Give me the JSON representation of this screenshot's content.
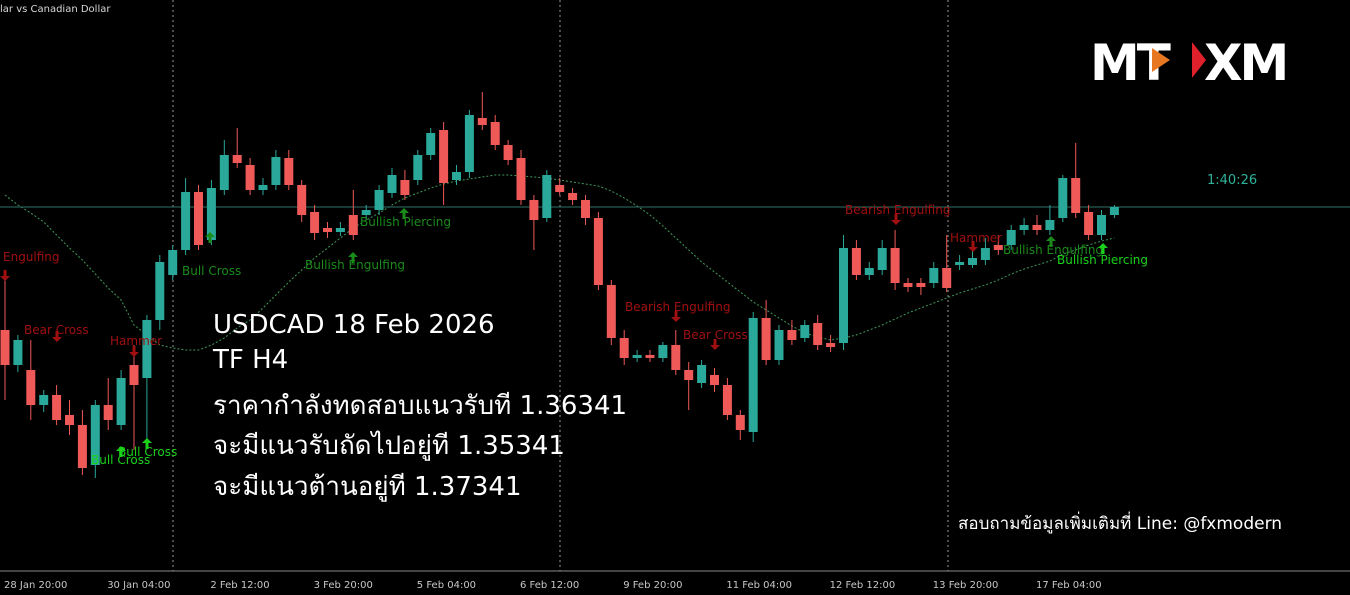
{
  "chart_data": {
    "type": "candlestick",
    "title": "lar vs Canadian Dollar",
    "timer": "1:40:26",
    "logo": {
      "left": "MT",
      "right": "XM"
    },
    "overlay_text": [
      "USDCAD 18 Feb 2026",
      "TF H4",
      "ราคากำลังทดสอบแนวรับที 1.36341",
      "จะมีแนวรับถัดไปอยู่ที 1.35341",
      "จะมีแนวต้านอยู่ที 1.37341"
    ],
    "footer": "สอบถามข้อมูลเพิ่มเติมที่ Line: @fxmodern",
    "up_color": "#2aa89a",
    "down_color": "#ef5a58",
    "ylim": [
      1.3693,
      1.375
    ],
    "x": [
      "28 Jan 20:00",
      null,
      null,
      null,
      null,
      null,
      null,
      null,
      "30 Jan 04:00",
      null,
      null,
      null,
      null,
      null,
      null,
      null,
      "2 Feb 12:00",
      null,
      null,
      null,
      null,
      null,
      null,
      null,
      "3 Feb 20:00",
      null,
      null,
      null,
      null,
      null,
      null,
      null,
      "5 Feb 04:00",
      null,
      null,
      null,
      null,
      null,
      null,
      null,
      "6 Feb 12:00",
      null,
      null,
      null,
      null,
      null,
      null,
      null,
      "9 Feb 20:00",
      null,
      null,
      null,
      null,
      null,
      null,
      null,
      "11 Feb 04:00",
      null,
      null,
      null,
      null,
      null,
      null,
      null,
      "12 Feb 12:00",
      null,
      null,
      null,
      null,
      null,
      null,
      null,
      "13 Feb 20:00",
      null,
      null,
      null,
      null,
      null,
      null,
      null,
      "17 Feb 04:00",
      null,
      null,
      null,
      null,
      null,
      null
    ],
    "open": [
      1.3717,
      1.37135,
      1.3713,
      1.37095,
      1.37105,
      1.37085,
      1.37075,
      1.37035,
      1.37095,
      1.37075,
      1.37135,
      1.37122,
      1.3718,
      1.37225,
      1.3725,
      1.37308,
      1.3726,
      1.3731,
      1.37345,
      1.37335,
      1.3731,
      1.37315,
      1.37342,
      1.37315,
      1.37288,
      1.37272,
      1.37268,
      1.37285,
      1.37285,
      1.3729,
      1.37307,
      1.3732,
      1.3732,
      1.37345,
      1.3737,
      1.3732,
      1.37328,
      1.37382,
      1.37378,
      1.37355,
      1.37342,
      1.373,
      1.37282,
      1.37315,
      1.37307,
      1.373,
      1.37282,
      1.37215,
      1.37162,
      1.37142,
      1.37145,
      1.37142,
      1.37155,
      1.3713,
      1.37117,
      1.37125,
      1.37115,
      1.37085,
      1.37068,
      1.37182,
      1.3714,
      1.3717,
      1.37162,
      1.37177,
      1.37157,
      1.37157,
      1.37252,
      1.37225,
      1.3723,
      1.37252,
      1.37217,
      1.37217,
      1.37217,
      1.37232,
      1.37235,
      1.37235,
      1.3724,
      1.37255,
      1.37255,
      1.3727,
      1.37275,
      1.3727,
      1.37282,
      1.37322,
      1.37288,
      1.37265,
      1.37285
    ],
    "high": [
      1.3722,
      1.37165,
      1.3716,
      1.3711,
      1.37115,
      1.371,
      1.3709,
      1.371,
      1.37122,
      1.3713,
      1.37155,
      1.37185,
      1.37245,
      1.37255,
      1.37322,
      1.37315,
      1.3732,
      1.3736,
      1.37372,
      1.37342,
      1.37322,
      1.3735,
      1.3735,
      1.3732,
      1.37295,
      1.37278,
      1.37278,
      1.3731,
      1.37295,
      1.37315,
      1.37332,
      1.3733,
      1.3735,
      1.37372,
      1.37378,
      1.37335,
      1.3739,
      1.37408,
      1.37385,
      1.3736,
      1.3735,
      1.37305,
      1.3733,
      1.37322,
      1.37312,
      1.37305,
      1.37288,
      1.3722,
      1.3717,
      1.3715,
      1.3715,
      1.37158,
      1.3717,
      1.37138,
      1.3714,
      1.37132,
      1.37122,
      1.3709,
      1.37188,
      1.372,
      1.37175,
      1.3718,
      1.3718,
      1.37185,
      1.37165,
      1.37265,
      1.3726,
      1.37238,
      1.3726,
      1.3727,
      1.37222,
      1.37222,
      1.37238,
      1.37265,
      1.37245,
      1.3725,
      1.37262,
      1.37265,
      1.37275,
      1.37282,
      1.37285,
      1.37295,
      1.37325,
      1.37357,
      1.37295,
      1.3729,
      1.37295
    ],
    "low": [
      1.371,
      1.37128,
      1.3708,
      1.37088,
      1.37075,
      1.37065,
      1.37025,
      1.37022,
      1.3707,
      1.3707,
      1.3705,
      1.3706,
      1.3717,
      1.3722,
      1.37245,
      1.3725,
      1.37255,
      1.37305,
      1.37332,
      1.37305,
      1.37305,
      1.3731,
      1.3731,
      1.37278,
      1.3726,
      1.37262,
      1.37264,
      1.3726,
      1.3728,
      1.37285,
      1.37302,
      1.373,
      1.37315,
      1.3734,
      1.37295,
      1.37315,
      1.37322,
      1.3737,
      1.3735,
      1.37335,
      1.37295,
      1.3725,
      1.37278,
      1.37305,
      1.37295,
      1.37275,
      1.3721,
      1.37155,
      1.37135,
      1.37138,
      1.37138,
      1.37138,
      1.37125,
      1.3709,
      1.37112,
      1.37108,
      1.3708,
      1.3706,
      1.37058,
      1.37135,
      1.37135,
      1.37155,
      1.37158,
      1.3715,
      1.37148,
      1.3715,
      1.3722,
      1.3722,
      1.37225,
      1.3721,
      1.37208,
      1.37205,
      1.37212,
      1.37208,
      1.3723,
      1.37232,
      1.37235,
      1.37245,
      1.3725,
      1.37265,
      1.37265,
      1.37265,
      1.37278,
      1.37282,
      1.3726,
      1.3726,
      1.37282
    ],
    "close": [
      1.37135,
      1.3716,
      1.37095,
      1.37105,
      1.3708,
      1.37075,
      1.37032,
      1.37095,
      1.3708,
      1.37122,
      1.37115,
      1.3718,
      1.37238,
      1.3725,
      1.37308,
      1.37255,
      1.37312,
      1.37345,
      1.37337,
      1.3731,
      1.37315,
      1.37343,
      1.37315,
      1.37285,
      1.37267,
      1.37268,
      1.37272,
      1.37265,
      1.3729,
      1.3731,
      1.37325,
      1.37305,
      1.37345,
      1.37367,
      1.37317,
      1.37328,
      1.37385,
      1.37375,
      1.37355,
      1.3734,
      1.373,
      1.3728,
      1.37325,
      1.37308,
      1.373,
      1.37282,
      1.37215,
      1.37162,
      1.37142,
      1.37145,
      1.37142,
      1.37155,
      1.3713,
      1.3712,
      1.37135,
      1.37115,
      1.37085,
      1.3707,
      1.37182,
      1.3714,
      1.3717,
      1.3716,
      1.37175,
      1.37155,
      1.37153,
      1.37252,
      1.37225,
      1.37232,
      1.37252,
      1.37217,
      1.37213,
      1.37213,
      1.37232,
      1.37212,
      1.37238,
      1.37242,
      1.37252,
      1.3725,
      1.3727,
      1.37275,
      1.3727,
      1.3728,
      1.37322,
      1.37287,
      1.37265,
      1.37285,
      1.37293
    ],
    "band": {
      "color": "#3f9a5a",
      "values": [
        1.37305,
        1.37295,
        1.37287,
        1.37278,
        1.37265,
        1.37252,
        1.3724,
        1.37226,
        1.37212,
        1.372,
        1.37175,
        1.37165,
        1.37155,
        1.37152,
        1.3715,
        1.3715,
        1.37155,
        1.37162,
        1.37172,
        1.3718,
        1.37192,
        1.37205,
        1.37218,
        1.3723,
        1.37242,
        1.37252,
        1.37262,
        1.37272,
        1.3728,
        1.37287,
        1.37295,
        1.37302,
        1.37307,
        1.37312,
        1.37316,
        1.37319,
        1.37321,
        1.37323,
        1.37325,
        1.37325,
        1.37324,
        1.37323,
        1.37322,
        1.3732,
        1.37318,
        1.37316,
        1.37314,
        1.37309,
        1.37302,
        1.37294,
        1.37285,
        1.37274,
        1.37262,
        1.3725,
        1.37238,
        1.37228,
        1.37218,
        1.37208,
        1.37198,
        1.3719,
        1.37182,
        1.37174,
        1.37167,
        1.37163,
        1.3716,
        1.37162,
        1.37165,
        1.3717,
        1.37175,
        1.37181,
        1.37187,
        1.37192,
        1.37197,
        1.37202,
        1.37207,
        1.37211,
        1.37215,
        1.3722,
        1.37226,
        1.37231,
        1.37235,
        1.37239,
        1.37246,
        1.3725,
        1.37255,
        1.37259,
        1.37262
      ]
    },
    "annotations": [
      {
        "text": "Engulfing",
        "color": "#a01010"
      },
      {
        "text": "Bear Cross",
        "color": "#a01010"
      },
      {
        "text": "Hammer",
        "color": "#a01010"
      },
      {
        "text": "Bull Cross",
        "color": "#19d219"
      },
      {
        "text": "Bull Cross",
        "color": "#19d219"
      },
      {
        "text": "Bull Cross",
        "color": "#1a8a1a"
      },
      {
        "text": "Bullish Engulfing",
        "color": "#1a8a1a"
      },
      {
        "text": "Bullish Piercing",
        "color": "#1a8a1a"
      },
      {
        "text": "Bearish Engulfing",
        "color": "#a01010"
      },
      {
        "text": "Bear Cross",
        "color": "#a01010"
      },
      {
        "text": "Bearish Engulfing",
        "color": "#a01010"
      },
      {
        "text": "Hammer",
        "color": "#a01010"
      },
      {
        "text": "Bullish Engulfing",
        "color": "#1a8a1a"
      },
      {
        "text": "Bullish Piercing",
        "color": "#19d219"
      }
    ]
  }
}
